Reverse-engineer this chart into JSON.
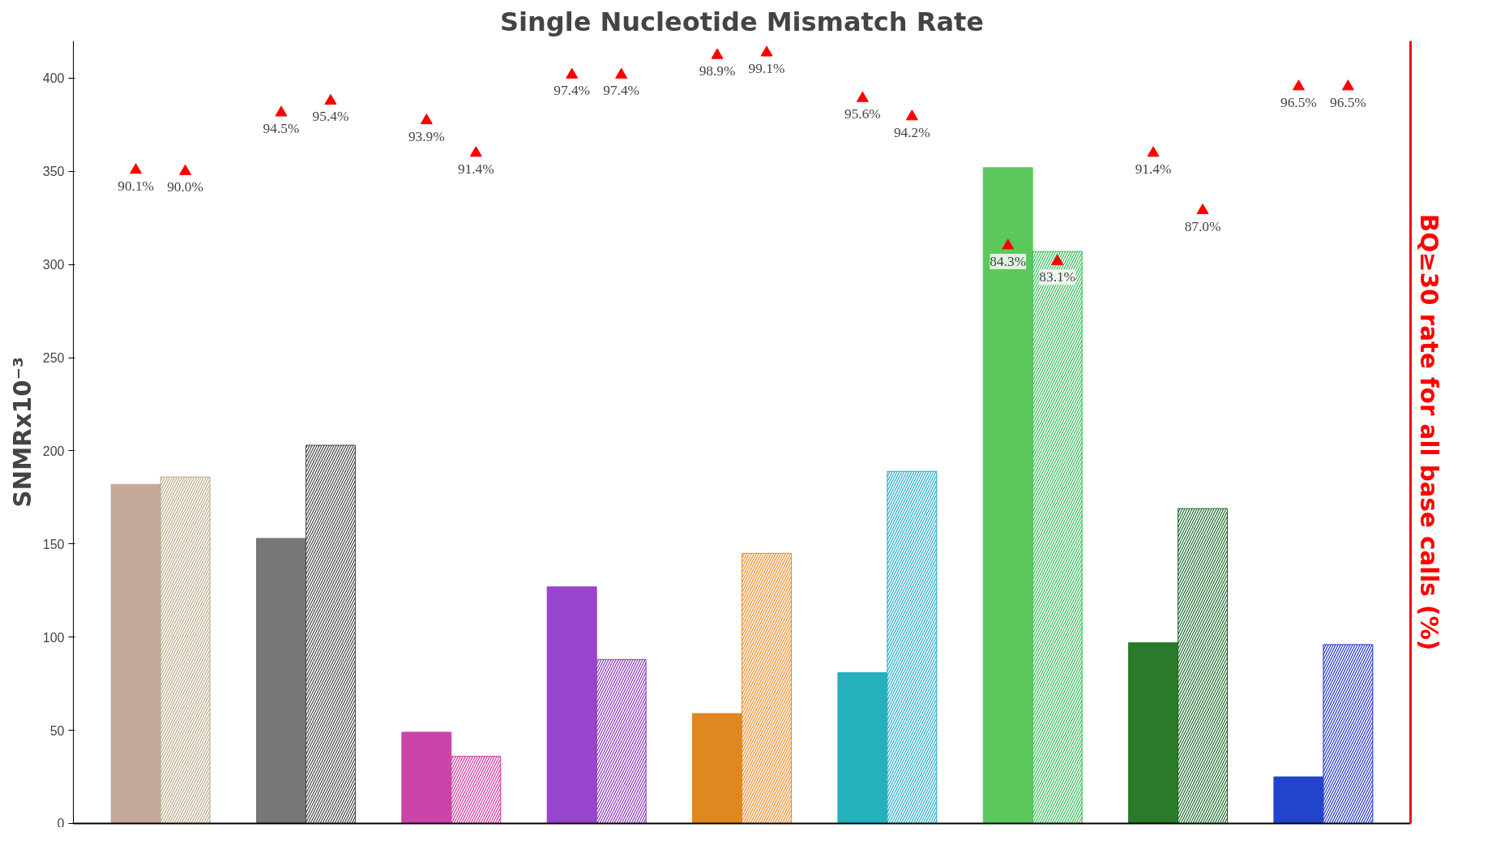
{
  "chart_data": {
    "type": "bar",
    "title": "Single Nucleotide Mismatch Rate",
    "ylabel": "SNMRx10⁻³",
    "y2label": "BQ≥30 rate for all base calls (%)",
    "categories": [
      null,
      null,
      null,
      null,
      null,
      null,
      null,
      null,
      null
    ],
    "series": [
      {
        "colors": [
          "#c4a898",
          "#777777",
          "#cc44aa",
          "#9944cc",
          "#e08820",
          "#26b0bc",
          "#5cc85c",
          "#2a7a2a",
          "#2244cc"
        ],
        "values": [
          182,
          153,
          49,
          127,
          59,
          81,
          352,
          97,
          25
        ]
      },
      {
        "colors": [
          "#b8a888",
          "#444444",
          "#cc3399",
          "#8833bb",
          "#f08820",
          "#22aacc",
          "#33bb55",
          "#1a6a2a",
          "#2233cc"
        ],
        "values": [
          186,
          203,
          36,
          88,
          145,
          189,
          307,
          169,
          96
        ]
      },
      {
        "type": "scatter",
        "axis": "y2",
        "color": "#ff0000",
        "marker": "triangle",
        "values": [
          90.1,
          94.5,
          93.9,
          97.4,
          98.9,
          95.6,
          84.3,
          91.4,
          96.5
        ],
        "value_labels": [
          "90.1%",
          "94.5%",
          "93.9%",
          "97.4%",
          "98.9%",
          "95.6%",
          "84.3%",
          "91.4%",
          "96.5%"
        ]
      },
      {
        "type": "scatter",
        "axis": "y2",
        "color": "#ff0000",
        "marker": "triangle",
        "values": [
          90.0,
          95.4,
          91.4,
          97.4,
          99.1,
          94.2,
          83.1,
          87.0,
          96.5
        ],
        "value_labels": [
          "90.0%",
          "95.4%",
          "91.4%",
          "97.4%",
          "99.1%",
          "94.2%",
          "83.1%",
          "87.0%",
          "96.5%"
        ]
      }
    ],
    "ylim": [
      0,
      420
    ],
    "yticks": [
      0,
      50,
      100,
      150,
      200,
      250,
      300,
      350,
      400
    ],
    "y2lim": [
      40,
      100
    ],
    "grid": false,
    "tick_labels": "y"
  }
}
